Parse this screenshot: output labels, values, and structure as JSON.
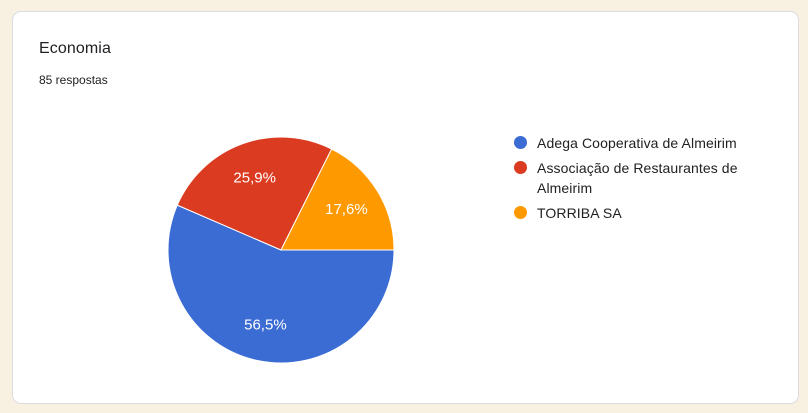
{
  "card": {
    "title": "Economia",
    "responses_label": "85 respostas"
  },
  "chart_data": {
    "type": "pie",
    "title": "Economia",
    "subtitle": "85 respostas",
    "total_responses": 85,
    "legend_position": "right",
    "start_angle_clockwise_from_east_deg": 0,
    "slices": [
      {
        "label": "Adega Cooperativa de Almeirim",
        "percent": 56.5,
        "display": "56,5%",
        "color": "#3b6cd4"
      },
      {
        "label": "Associação de Restaurantes de Almeirim",
        "percent": 25.9,
        "display": "25,9%",
        "color": "#da3b21"
      },
      {
        "label": "TORRIBA SA",
        "percent": 17.6,
        "display": "17,6%",
        "color": "#ff9900"
      }
    ]
  },
  "theme": {
    "page_background": "#f8f0e1",
    "card_background": "#ffffff",
    "card_border": "#dadce0",
    "title_color": "#202124",
    "legend_text_color": "#212121",
    "slice_label_color": "#ffffff",
    "slice_separator_color": "#ffffff"
  }
}
